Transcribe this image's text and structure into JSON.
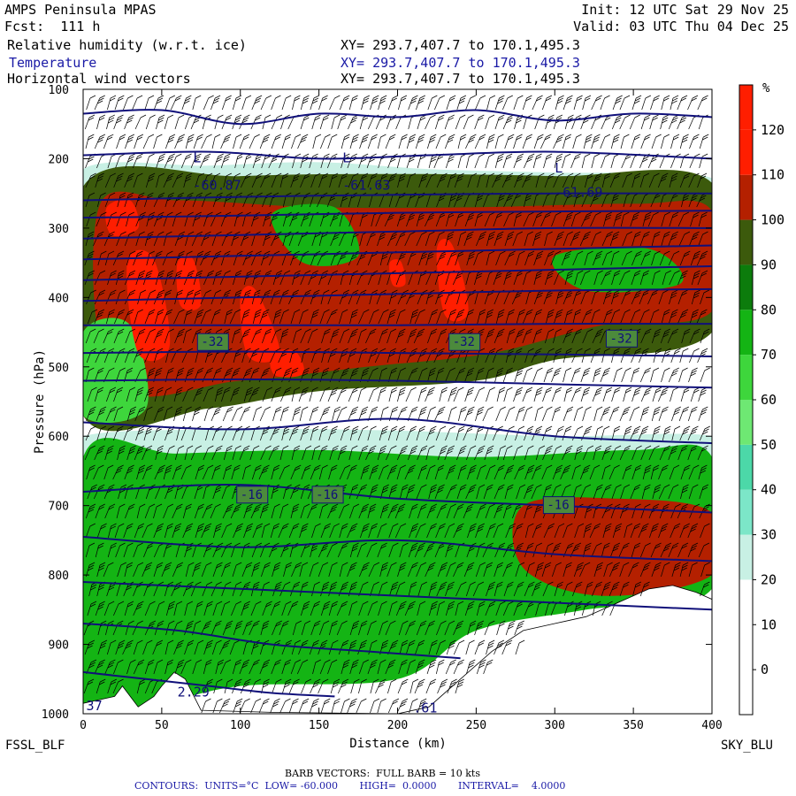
{
  "header": {
    "model": "AMPS Peninsula MPAS",
    "fcst": "Fcst:  111 h",
    "init": "Init: 12 UTC Sat 29 Nov 25",
    "valid": "Valid: 03 UTC Thu 04 Dec 25",
    "fields": [
      {
        "name": "Relative humidity (w.r.t. ice)",
        "xy": "XY= 293.7,407.7 to 170.1,495.3"
      },
      {
        "name": "Temperature",
        "xy": "XY= 293.7,407.7 to 170.1,495.3"
      },
      {
        "name": "Horizontal wind vectors",
        "xy": "XY= 293.7,407.7 to 170.1,495.3"
      }
    ]
  },
  "footer": {
    "left_station": "FSSL_BLF",
    "right_station": "SKY_BLU",
    "barb_note": "BARB VECTORS:  FULL BARB = 10 kts",
    "contour_note": "CONTOURS:  UNITS=°C  LOW= -60.000       HIGH=  0.0000       INTERVAL=    4.0000"
  },
  "chart_data": {
    "type": "heatmap",
    "xlabel": "Distance (km)",
    "ylabel": "Pressure (hPa)",
    "xlim": [
      0,
      400
    ],
    "ylim": [
      1000,
      100
    ],
    "x_ticks": [
      0,
      50,
      100,
      150,
      200,
      250,
      300,
      350,
      400
    ],
    "y_ticks": [
      100,
      200,
      300,
      400,
      500,
      600,
      700,
      800,
      900,
      1000
    ],
    "colorbar": {
      "unit": "%",
      "levels": [
        0,
        10,
        20,
        30,
        40,
        50,
        60,
        70,
        80,
        90,
        100,
        110,
        120
      ],
      "colors": [
        "#ffffff",
        "#ffffff",
        "#ffffff",
        "#c8f0e4",
        "#7ce6c8",
        "#4cd8a8",
        "#6ee873",
        "#3ed63c",
        "#14b414",
        "#0c7c0c",
        "#3c5a0c",
        "#b42000",
        "#ff1e00",
        "#ff1e00"
      ]
    },
    "rh_regions": [
      {
        "level": 20,
        "points": [
          [
            0,
            215
          ],
          [
            80,
            210
          ],
          [
            150,
            205
          ],
          [
            220,
            215
          ],
          [
            300,
            220
          ],
          [
            400,
            228
          ],
          [
            400,
            305
          ],
          [
            300,
            330
          ],
          [
            200,
            345
          ],
          [
            120,
            330
          ],
          [
            60,
            320
          ],
          [
            0,
            330
          ]
        ]
      },
      {
        "level": 25,
        "points": [
          [
            0,
            600
          ],
          [
            100,
            590
          ],
          [
            200,
            592
          ],
          [
            300,
            600
          ],
          [
            400,
            600
          ],
          [
            400,
            650
          ],
          [
            300,
            650
          ],
          [
            200,
            660
          ],
          [
            100,
            650
          ],
          [
            0,
            655
          ]
        ]
      },
      {
        "level": 70,
        "points": [
          [
            0,
            630
          ],
          [
            60,
            625
          ],
          [
            150,
            620
          ],
          [
            250,
            630
          ],
          [
            350,
            620
          ],
          [
            400,
            630
          ],
          [
            400,
            820
          ],
          [
            320,
            850
          ],
          [
            250,
            880
          ],
          [
            200,
            950
          ],
          [
            100,
            960
          ],
          [
            40,
            990
          ],
          [
            0,
            985
          ]
        ]
      },
      {
        "level": 95,
        "points": [
          [
            0,
            240
          ],
          [
            100,
            225
          ],
          [
            200,
            222
          ],
          [
            300,
            225
          ],
          [
            400,
            235
          ],
          [
            400,
            450
          ],
          [
            300,
            490
          ],
          [
            250,
            520
          ],
          [
            150,
            535
          ],
          [
            80,
            560
          ],
          [
            0,
            570
          ]
        ]
      },
      {
        "level": 108,
        "points": [
          [
            10,
            270
          ],
          [
            60,
            260
          ],
          [
            150,
            270
          ],
          [
            250,
            270
          ],
          [
            350,
            265
          ],
          [
            400,
            275
          ],
          [
            400,
            420
          ],
          [
            330,
            440
          ],
          [
            260,
            480
          ],
          [
            180,
            500
          ],
          [
            100,
            520
          ],
          [
            20,
            525
          ]
        ]
      },
      {
        "level": 78,
        "points": [
          [
            120,
            280
          ],
          [
            160,
            270
          ],
          [
            175,
            340
          ],
          [
            140,
            350
          ]
        ]
      },
      {
        "level": 78,
        "points": [
          [
            300,
            340
          ],
          [
            360,
            330
          ],
          [
            380,
            380
          ],
          [
            320,
            390
          ]
        ]
      },
      {
        "level": 60,
        "points": [
          [
            0,
            450
          ],
          [
            30,
            440
          ],
          [
            40,
            560
          ],
          [
            0,
            570
          ]
        ]
      },
      {
        "level": 105,
        "points": [
          [
            280,
            700
          ],
          [
            340,
            690
          ],
          [
            400,
            710
          ],
          [
            400,
            800
          ],
          [
            330,
            830
          ],
          [
            280,
            790
          ]
        ]
      },
      {
        "level": 125,
        "points": [
          [
            15,
            270
          ],
          [
            30,
            260
          ],
          [
            35,
            300
          ],
          [
            18,
            310
          ]
        ]
      },
      {
        "level": 125,
        "points": [
          [
            28,
            350
          ],
          [
            45,
            345
          ],
          [
            55,
            470
          ],
          [
            35,
            480
          ]
        ]
      },
      {
        "level": 125,
        "points": [
          [
            100,
            400
          ],
          [
            110,
            390
          ],
          [
            125,
            480
          ],
          [
            105,
            485
          ]
        ]
      },
      {
        "level": 125,
        "points": [
          [
            60,
            350
          ],
          [
            70,
            345
          ],
          [
            75,
            410
          ],
          [
            62,
            412
          ]
        ]
      },
      {
        "level": 125,
        "points": [
          [
            225,
            330
          ],
          [
            235,
            325
          ],
          [
            245,
            420
          ],
          [
            230,
            425
          ]
        ]
      },
      {
        "level": 125,
        "points": [
          [
            195,
            350
          ],
          [
            202,
            348
          ],
          [
            205,
            380
          ],
          [
            197,
            382
          ]
        ]
      },
      {
        "level": 125,
        "points": [
          [
            120,
            480
          ],
          [
            135,
            478
          ],
          [
            140,
            510
          ],
          [
            122,
            512
          ]
        ]
      }
    ],
    "terrain": [
      [
        0,
        985
      ],
      [
        20,
        975
      ],
      [
        25,
        960
      ],
      [
        35,
        990
      ],
      [
        45,
        975
      ],
      [
        50,
        960
      ],
      [
        58,
        940
      ],
      [
        65,
        950
      ],
      [
        75,
        995
      ],
      [
        120,
        998
      ],
      [
        200,
        1000
      ],
      [
        220,
        990
      ],
      [
        240,
        950
      ],
      [
        260,
        910
      ],
      [
        280,
        880
      ],
      [
        300,
        870
      ],
      [
        320,
        860
      ],
      [
        340,
        840
      ],
      [
        360,
        820
      ],
      [
        375,
        815
      ],
      [
        390,
        825
      ],
      [
        400,
        835
      ],
      [
        400,
        1000
      ],
      [
        0,
        1000
      ]
    ],
    "temperature_contours": [
      {
        "value": -60,
        "points": [
          [
            0,
            135
          ],
          [
            50,
            130
          ],
          [
            100,
            150
          ],
          [
            150,
            135
          ],
          [
            200,
            140
          ],
          [
            250,
            130
          ],
          [
            300,
            145
          ],
          [
            350,
            135
          ],
          [
            400,
            140
          ]
        ]
      },
      {
        "value": -60,
        "points": [
          [
            0,
            195
          ],
          [
            80,
            190
          ],
          [
            150,
            200
          ],
          [
            220,
            195
          ],
          [
            300,
            190
          ],
          [
            400,
            200
          ]
        ]
      },
      {
        "value": -56,
        "points": [
          [
            0,
            260
          ],
          [
            100,
            255
          ],
          [
            200,
            252
          ],
          [
            300,
            250
          ],
          [
            400,
            250
          ]
        ]
      },
      {
        "value": -52,
        "points": [
          [
            0,
            285
          ],
          [
            100,
            282
          ],
          [
            200,
            278
          ],
          [
            300,
            276
          ],
          [
            400,
            275
          ]
        ]
      },
      {
        "value": -48,
        "points": [
          [
            0,
            315
          ],
          [
            100,
            310
          ],
          [
            200,
            305
          ],
          [
            300,
            300
          ],
          [
            400,
            300
          ]
        ]
      },
      {
        "value": -44,
        "points": [
          [
            0,
            345
          ],
          [
            100,
            340
          ],
          [
            200,
            335
          ],
          [
            300,
            330
          ],
          [
            400,
            325
          ]
        ]
      },
      {
        "value": -40,
        "points": [
          [
            0,
            375
          ],
          [
            100,
            370
          ],
          [
            200,
            365
          ],
          [
            300,
            360
          ],
          [
            400,
            355
          ]
        ]
      },
      {
        "value": -36,
        "points": [
          [
            0,
            405
          ],
          [
            100,
            400
          ],
          [
            200,
            395
          ],
          [
            300,
            390
          ],
          [
            400,
            388
          ]
        ]
      },
      {
        "value": -32,
        "points": [
          [
            0,
            440
          ],
          [
            100,
            440
          ],
          [
            200,
            440
          ],
          [
            300,
            438
          ],
          [
            400,
            438
          ]
        ]
      },
      {
        "value": -28,
        "points": [
          [
            0,
            480
          ],
          [
            100,
            478
          ],
          [
            200,
            480
          ],
          [
            300,
            482
          ],
          [
            400,
            485
          ]
        ]
      },
      {
        "value": -24,
        "points": [
          [
            0,
            520
          ],
          [
            100,
            518
          ],
          [
            200,
            520
          ],
          [
            300,
            525
          ],
          [
            400,
            530
          ]
        ]
      },
      {
        "value": -20,
        "points": [
          [
            0,
            580
          ],
          [
            100,
            590
          ],
          [
            200,
            575
          ],
          [
            300,
            600
          ],
          [
            400,
            610
          ]
        ]
      },
      {
        "value": -16,
        "points": [
          [
            0,
            680
          ],
          [
            100,
            670
          ],
          [
            200,
            690
          ],
          [
            300,
            700
          ],
          [
            400,
            710
          ]
        ]
      },
      {
        "value": -12,
        "points": [
          [
            0,
            745
          ],
          [
            100,
            760
          ],
          [
            200,
            750
          ],
          [
            300,
            770
          ],
          [
            400,
            780
          ]
        ]
      },
      {
        "value": -8,
        "points": [
          [
            0,
            810
          ],
          [
            100,
            820
          ],
          [
            200,
            830
          ],
          [
            300,
            840
          ],
          [
            400,
            850
          ]
        ]
      },
      {
        "value": -4,
        "points": [
          [
            0,
            870
          ],
          [
            60,
            880
          ],
          [
            120,
            900
          ],
          [
            180,
            910
          ],
          [
            240,
            920
          ]
        ]
      },
      {
        "value": 0,
        "points": [
          [
            0,
            940
          ],
          [
            40,
            950
          ],
          [
            80,
            960
          ],
          [
            120,
            970
          ],
          [
            160,
            975
          ]
        ]
      }
    ],
    "labels": [
      {
        "x": 75,
        "y": 470,
        "text": "-32",
        "boxed": true
      },
      {
        "x": 235,
        "y": 470,
        "text": "-32",
        "boxed": true
      },
      {
        "x": 335,
        "y": 465,
        "text": "-32",
        "boxed": true
      },
      {
        "x": 100,
        "y": 690,
        "text": "-16",
        "boxed": true
      },
      {
        "x": 148,
        "y": 690,
        "text": "-16",
        "boxed": true
      },
      {
        "x": 295,
        "y": 705,
        "text": "-16",
        "boxed": true
      },
      {
        "x": 70,
        "y": 205,
        "text": "L",
        "boxed": false
      },
      {
        "x": 70,
        "y": 245,
        "text": "-60.87",
        "boxed": false
      },
      {
        "x": 165,
        "y": 205,
        "text": "L",
        "boxed": false
      },
      {
        "x": 165,
        "y": 245,
        "text": "-61.63",
        "boxed": false
      },
      {
        "x": 300,
        "y": 220,
        "text": "L",
        "boxed": false
      },
      {
        "x": 300,
        "y": 255,
        "text": "-61.69",
        "boxed": false
      },
      {
        "x": 60,
        "y": 975,
        "text": "2.29",
        "boxed": false
      },
      {
        "x": 2,
        "y": 995,
        "text": "37",
        "boxed": false
      },
      {
        "x": 210,
        "y": 998,
        "text": ".61",
        "boxed": false
      }
    ]
  }
}
